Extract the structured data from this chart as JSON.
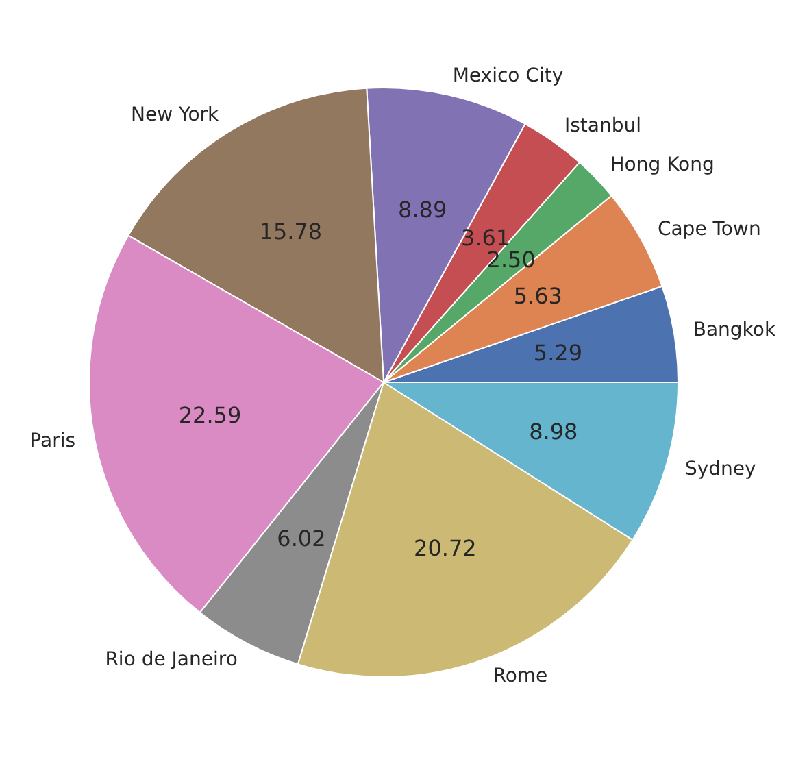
{
  "chart_data": {
    "type": "pie",
    "categories": [
      "Bangkok",
      "Cape Town",
      "Hong Kong",
      "Istanbul",
      "Mexico City",
      "New York",
      "Paris",
      "Rio de Janeiro",
      "Rome",
      "Sydney"
    ],
    "values": [
      5.29,
      5.63,
      2.5,
      3.61,
      8.89,
      15.78,
      22.59,
      6.02,
      20.72,
      8.98
    ],
    "value_labels": [
      "5.29",
      "5.63",
      "2.50",
      "3.61",
      "8.89",
      "15.78",
      "22.59",
      "6.02",
      "20.72",
      "8.98"
    ],
    "colors": [
      "#4c72b0",
      "#dd8452",
      "#55a868",
      "#c44e52",
      "#8172b3",
      "#937860",
      "#da8bc3",
      "#8c8c8c",
      "#ccb974",
      "#64b5cd"
    ],
    "legend": false
  }
}
